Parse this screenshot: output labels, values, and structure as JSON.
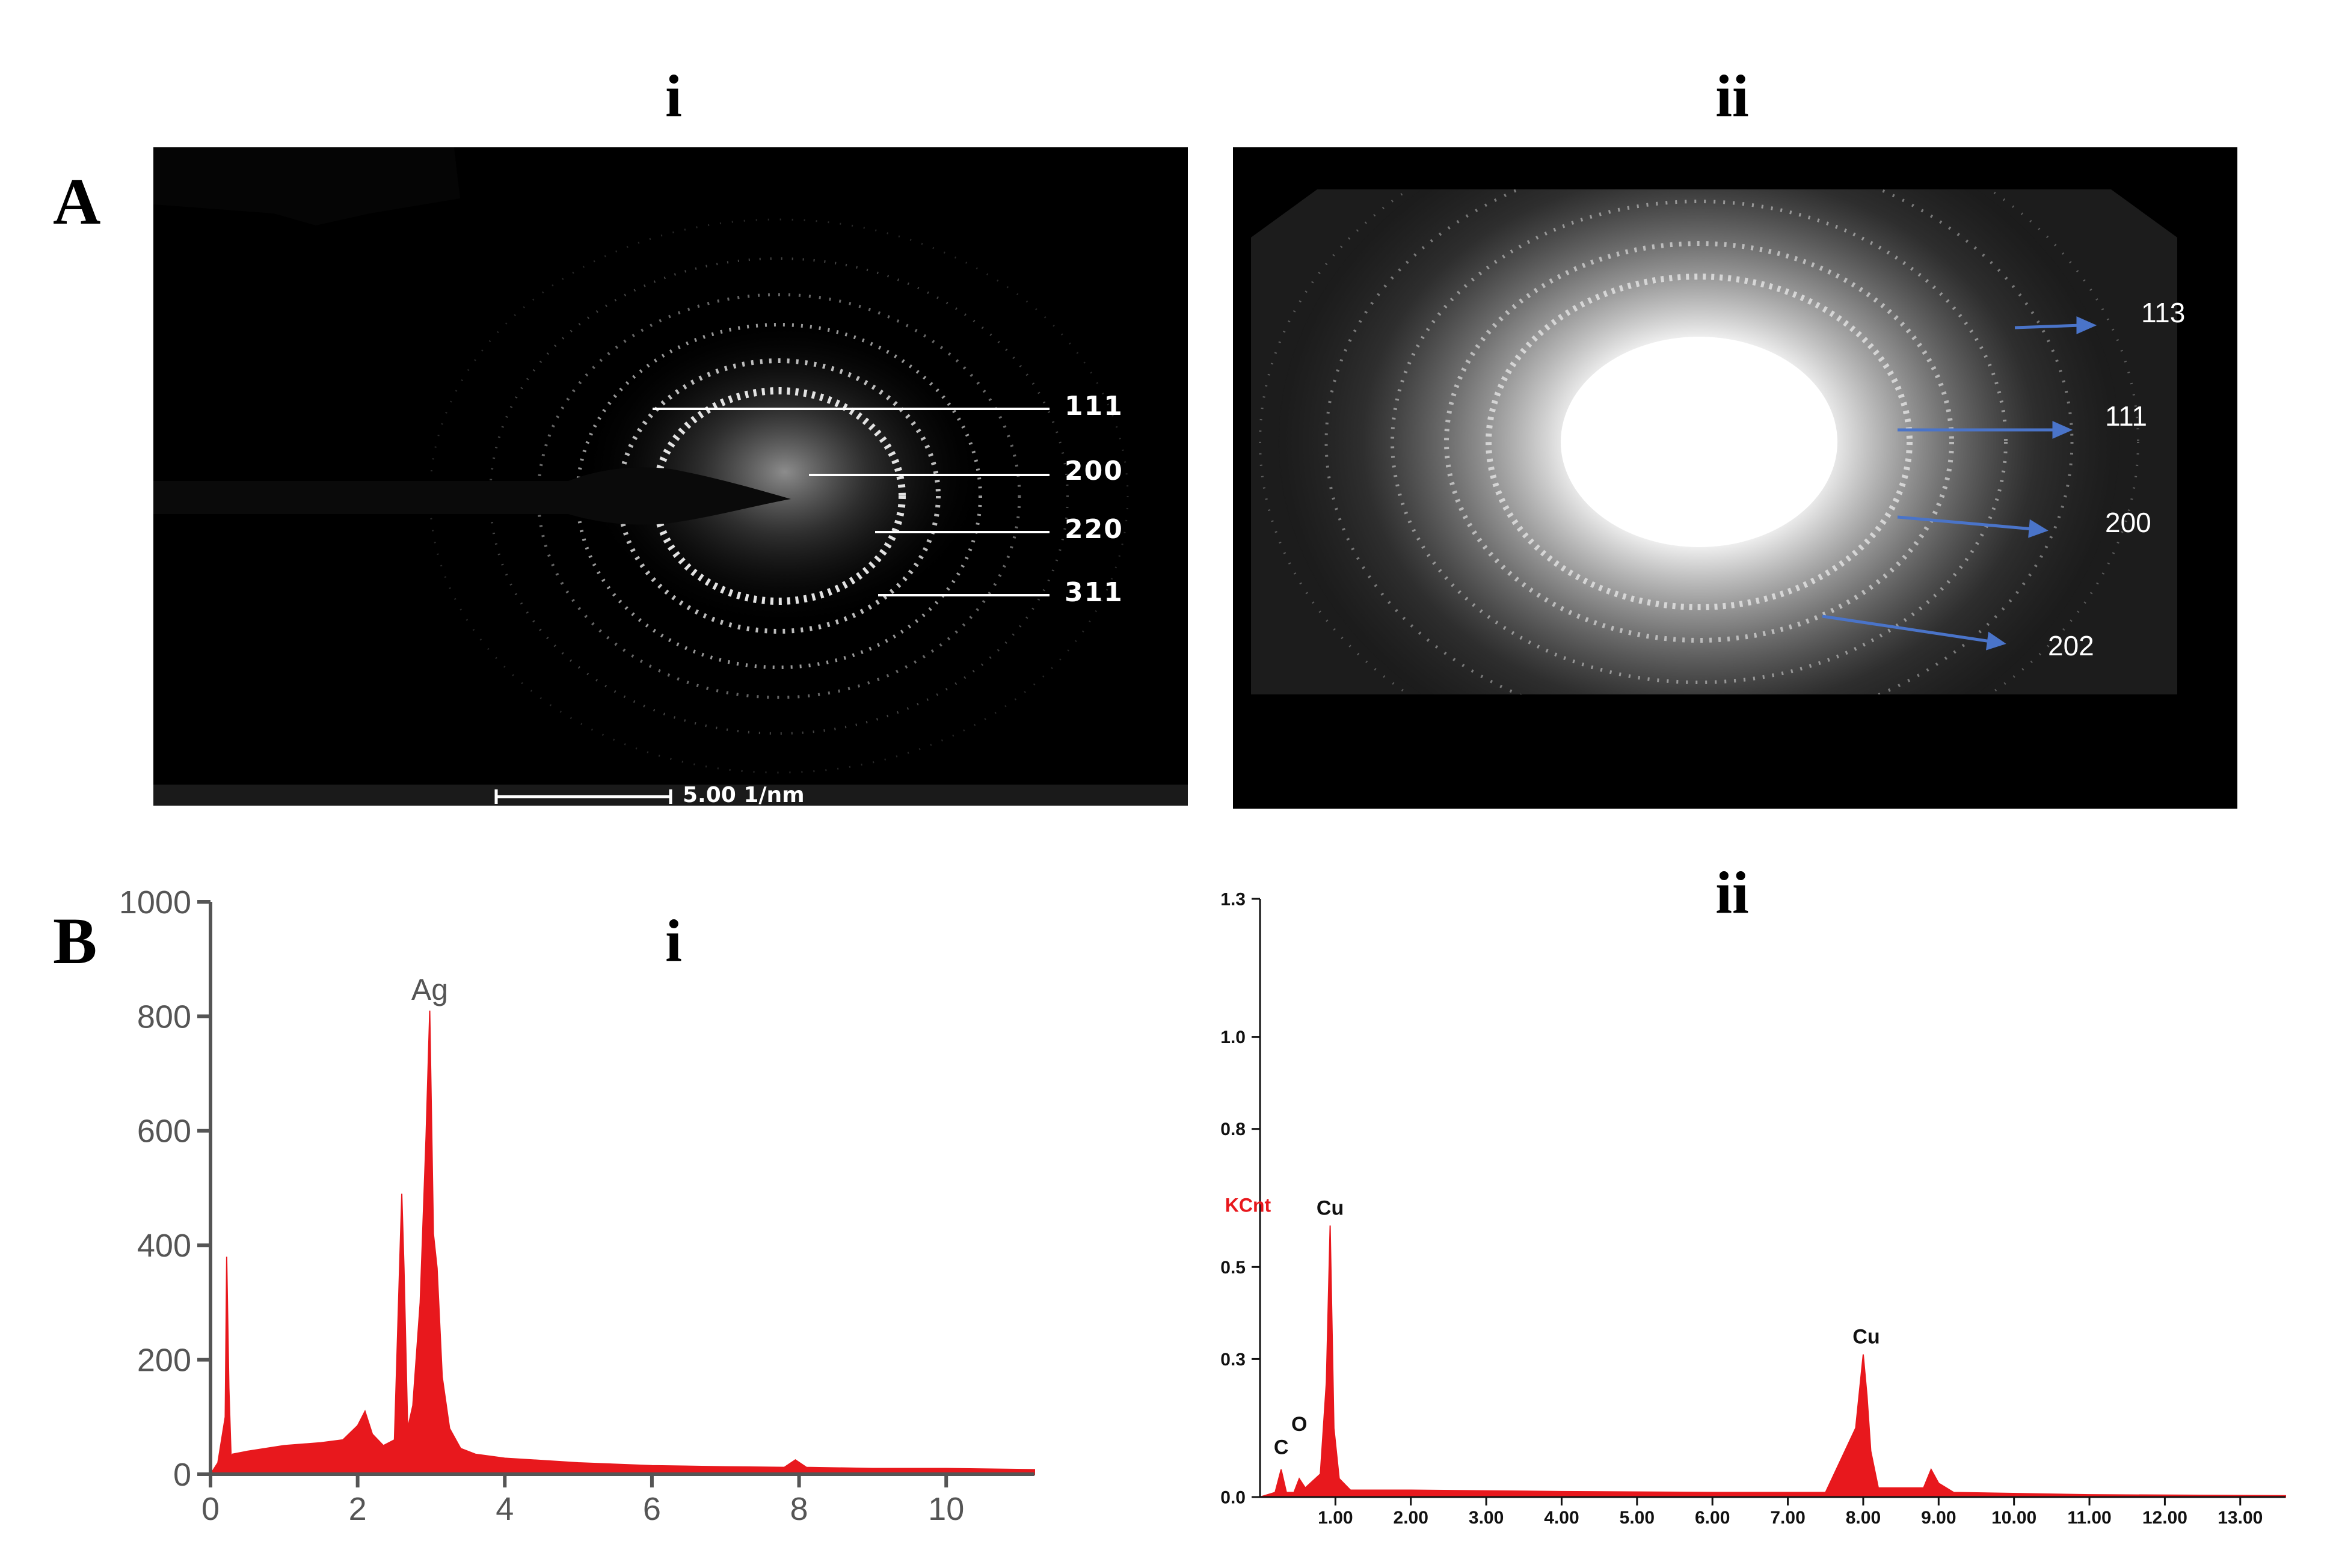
{
  "figure": {
    "panel_A_letter": "A",
    "panel_B_letter": "B"
  },
  "panel_A": {
    "i": {
      "subtitle": "i",
      "ring_labels": [
        "111",
        "200",
        "220",
        "311"
      ],
      "scale_bar": "5.00 1/nm"
    },
    "ii": {
      "subtitle": "ii",
      "ring_labels": [
        "113",
        "111",
        "200",
        "202"
      ]
    }
  },
  "panel_B": {
    "i": {
      "subtitle": "i"
    },
    "ii": {
      "subtitle": "ii"
    }
  },
  "colors": {
    "spectrum_red": "#e8181d",
    "axis_i": "#555555",
    "axis_ii": "#111111",
    "arrow_blue": "#4a74c9"
  },
  "chart_data": [
    {
      "type": "area",
      "title": "",
      "xlabel": "",
      "ylabel": "",
      "xlim": [
        0,
        11.2
      ],
      "ylim": [
        0,
        1000
      ],
      "x_ticks": [
        0,
        2,
        4,
        6,
        8,
        10
      ],
      "x_tick_labels": [
        "0",
        "2",
        "4",
        "6",
        "8",
        "10"
      ],
      "y_ticks": [
        0,
        200,
        400,
        600,
        800,
        1000
      ],
      "y_tick_labels": [
        "0",
        "200",
        "400",
        "600",
        "800",
        "1000"
      ],
      "peak_labels": [
        {
          "text": "Ag",
          "x": 2.98,
          "y": 810
        }
      ],
      "x": [
        0.0,
        0.1,
        0.2,
        0.22,
        0.25,
        0.28,
        0.3,
        0.5,
        1.0,
        1.5,
        1.8,
        2.0,
        2.1,
        2.2,
        2.35,
        2.5,
        2.6,
        2.63,
        2.68,
        2.75,
        2.85,
        2.93,
        2.98,
        3.03,
        3.08,
        3.15,
        3.25,
        3.4,
        3.6,
        4.0,
        5.0,
        6.0,
        7.0,
        7.8,
        7.95,
        8.1,
        9.0,
        10.0,
        11.2
      ],
      "y": [
        0,
        20,
        100,
        380,
        150,
        30,
        35,
        40,
        50,
        55,
        60,
        85,
        110,
        70,
        50,
        60,
        490,
        360,
        80,
        120,
        300,
        590,
        810,
        420,
        360,
        170,
        80,
        45,
        35,
        28,
        20,
        15,
        13,
        12,
        25,
        12,
        10,
        10,
        8
      ]
    },
    {
      "type": "area",
      "title": "",
      "xlabel": "",
      "ylabel": "KCnt",
      "xlim": [
        0,
        13.6
      ],
      "ylim": [
        0,
        1.3
      ],
      "x_ticks": [
        1,
        2,
        3,
        4,
        5,
        6,
        7,
        8,
        9,
        10,
        11,
        12,
        13
      ],
      "x_tick_labels": [
        "1.00",
        "2.00",
        "3.00",
        "4.00",
        "5.00",
        "6.00",
        "7.00",
        "8.00",
        "9.00",
        "10.00",
        "11.00",
        "12.00",
        "13.00"
      ],
      "y_ticks": [
        0.0,
        0.3,
        0.5,
        0.8,
        1.0,
        1.3
      ],
      "y_tick_labels": [
        "0.0",
        "0.3",
        "0.5",
        "0.8",
        "1.0",
        "1.3"
      ],
      "peak_labels": [
        {
          "text": "C",
          "x": 0.28,
          "y": 0.07
        },
        {
          "text": "O",
          "x": 0.52,
          "y": 0.12
        },
        {
          "text": "Cu",
          "x": 0.93,
          "y": 0.59
        },
        {
          "text": "Cu",
          "x": 8.04,
          "y": 0.31
        }
      ],
      "x": [
        0.0,
        0.2,
        0.28,
        0.35,
        0.45,
        0.52,
        0.6,
        0.8,
        0.88,
        0.93,
        0.98,
        1.05,
        1.2,
        2.0,
        4.0,
        6.0,
        7.5,
        7.9,
        8.0,
        8.05,
        8.1,
        8.2,
        8.8,
        8.9,
        9.0,
        9.2,
        11.0,
        13.6
      ],
      "y": [
        0.0,
        0.01,
        0.06,
        0.01,
        0.01,
        0.04,
        0.02,
        0.05,
        0.25,
        0.59,
        0.15,
        0.04,
        0.015,
        0.015,
        0.012,
        0.01,
        0.01,
        0.15,
        0.31,
        0.22,
        0.1,
        0.02,
        0.02,
        0.06,
        0.03,
        0.01,
        0.005,
        0.003
      ]
    }
  ]
}
